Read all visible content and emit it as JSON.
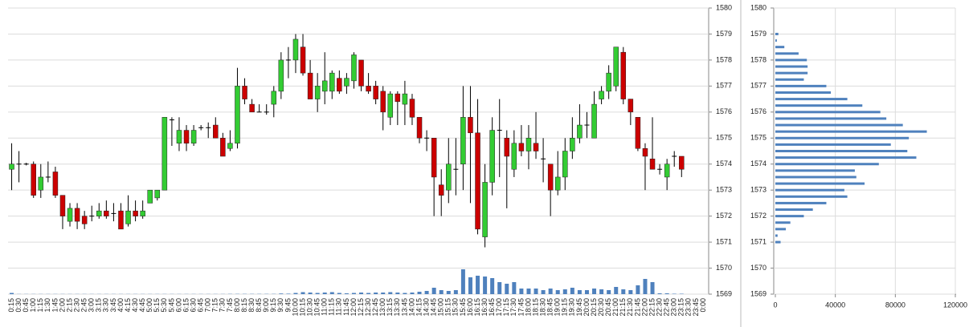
{
  "chart_data": [
    {
      "type": "candlestick",
      "categories": [
        "0:15",
        "0:30",
        "0:45",
        "1:00",
        "1:15",
        "1:30",
        "1:45",
        "2:00",
        "2:15",
        "2:30",
        "2:45",
        "3:00",
        "3:15",
        "3:30",
        "3:45",
        "4:00",
        "4:15",
        "4:30",
        "4:45",
        "5:00",
        "5:15",
        "5:30",
        "5:45",
        "6:00",
        "6:15",
        "6:30",
        "6:45",
        "7:00",
        "7:15",
        "7:30",
        "7:45",
        "8:00",
        "8:15",
        "8:30",
        "8:45",
        "9:00",
        "9:15",
        "9:30",
        "9:45",
        "10:00",
        "10:15",
        "10:30",
        "10:45",
        "11:00",
        "11:15",
        "11:30",
        "11:45",
        "12:00",
        "12:15",
        "12:30",
        "12:45",
        "13:00",
        "13:15",
        "13:30",
        "13:45",
        "14:00",
        "14:15",
        "14:30",
        "14:45",
        "15:00",
        "15:15",
        "15:30",
        "15:45",
        "16:00",
        "16:15",
        "16:30",
        "16:45",
        "17:00",
        "17:15",
        "17:30",
        "17:45",
        "18:00",
        "18:15",
        "18:30",
        "18:45",
        "19:00",
        "19:15",
        "19:30",
        "19:45",
        "20:00",
        "20:15",
        "20:30",
        "20:45",
        "21:00",
        "21:15",
        "21:30",
        "21:45",
        "22:00",
        "22:15",
        "22:30",
        "22:45",
        "23:00",
        "23:15",
        "23:30",
        "23:45",
        "0:00"
      ],
      "open": [
        1573.8,
        1574.0,
        1574.0,
        1574.0,
        1573.0,
        1573.5,
        1573.7,
        1572.8,
        1571.8,
        1572.3,
        1572.0,
        1572.0,
        1572.0,
        1572.2,
        1572.1,
        1572.2,
        1571.7,
        1572.2,
        1572.0,
        1572.5,
        1572.7,
        1573.0,
        1575.7,
        1574.8,
        1575.3,
        1574.8,
        1575.4,
        1575.4,
        1575.5,
        1575.0,
        1574.6,
        1574.8,
        1577.0,
        1576.3,
        1576.0,
        1576.0,
        1576.3,
        1576.8,
        1578.0,
        1578.0,
        1578.5,
        1577.5,
        1576.5,
        1576.8,
        1576.8,
        1577.3,
        1577.0,
        1577.2,
        1578.0,
        1577.0,
        1577.0,
        1576.8,
        1575.8,
        1576.7,
        1576.3,
        1576.5,
        1575.8,
        1575.0,
        1575.0,
        1573.2,
        1573.0,
        1573.8,
        1574.0,
        1575.8,
        1575.2,
        1571.2,
        1573.3,
        1575.3,
        1575.0,
        1573.8,
        1574.8,
        1574.5,
        1574.8,
        1574.2,
        1574.0,
        1573.0,
        1573.5,
        1574.5,
        1575.0,
        1575.5,
        1575.0,
        1576.5,
        1576.8,
        1577.0,
        1578.3,
        1576.5,
        1575.8,
        1574.6,
        1574.2,
        1573.8,
        1573.5,
        1574.3,
        1574.3,
        null,
        null,
        null
      ],
      "high": [
        1574.8,
        1574.5,
        1574.05,
        1574.1,
        1574.0,
        1574.1,
        1573.9,
        1572.8,
        1572.5,
        1572.5,
        1572.2,
        1572.4,
        1572.5,
        1572.6,
        1572.5,
        1572.5,
        1572.8,
        1572.6,
        1572.6,
        1573.0,
        1573.0,
        1575.8,
        1575.8,
        1575.8,
        1575.5,
        1575.5,
        1575.5,
        1575.6,
        1575.8,
        1575.2,
        1575.3,
        1577.7,
        1577.3,
        1576.5,
        1576.3,
        1576.3,
        1577.0,
        1578.3,
        1578.5,
        1579.0,
        1579.0,
        1578.0,
        1577.5,
        1578.3,
        1577.6,
        1577.6,
        1577.5,
        1578.3,
        1578.0,
        1577.5,
        1577.2,
        1577.0,
        1576.8,
        1576.8,
        1577.2,
        1576.7,
        1575.8,
        1575.3,
        1575.0,
        1573.8,
        1575.0,
        1575.0,
        1577.0,
        1577.0,
        1576.5,
        1574.0,
        1575.8,
        1576.5,
        1575.3,
        1575.3,
        1575.5,
        1575.5,
        1576.0,
        1575.0,
        1574.0,
        1574.5,
        1575.0,
        1575.8,
        1576.3,
        1576.0,
        1576.8,
        1577.0,
        1577.8,
        1578.5,
        1578.5,
        1576.5,
        1575.8,
        1574.8,
        1575.8,
        1574.0,
        1574.2,
        1574.5,
        1574.3,
        null,
        null,
        null
      ],
      "low": [
        1573.0,
        1573.3,
        1573.95,
        1572.7,
        1572.7,
        1573.3,
        1572.7,
        1571.5,
        1571.6,
        1571.5,
        1571.5,
        1571.8,
        1571.9,
        1571.9,
        1571.8,
        1571.5,
        1571.6,
        1571.8,
        1571.9,
        1572.5,
        1572.6,
        1573.0,
        1574.7,
        1574.5,
        1574.5,
        1574.7,
        1575.3,
        1575.0,
        1575.0,
        1574.3,
        1574.5,
        1574.6,
        1576.3,
        1576.0,
        1576.0,
        1575.9,
        1575.8,
        1576.5,
        1577.3,
        1577.5,
        1577.4,
        1576.5,
        1576.0,
        1576.3,
        1576.5,
        1576.7,
        1576.7,
        1576.9,
        1576.8,
        1576.7,
        1576.3,
        1575.3,
        1575.5,
        1575.5,
        1575.5,
        1575.5,
        1574.8,
        1574.5,
        1572.0,
        1572.0,
        1572.5,
        1572.8,
        1573.0,
        1572.5,
        1571.3,
        1570.8,
        1572.8,
        1573.5,
        1572.3,
        1573.5,
        1574.3,
        1573.8,
        1574.2,
        1573.3,
        1572.0,
        1572.8,
        1573.0,
        1574.2,
        1574.8,
        1575.0,
        1575.0,
        1576.3,
        1576.5,
        1576.8,
        1576.3,
        1575.5,
        1574.5,
        1573.0,
        1573.8,
        1573.6,
        1573.0,
        1573.9,
        1573.5,
        null,
        null,
        null
      ],
      "close": [
        1574.0,
        1574.0,
        1574.0,
        1572.8,
        1573.5,
        1573.5,
        1572.8,
        1572.0,
        1572.3,
        1571.8,
        1571.7,
        1572.0,
        1572.2,
        1572.0,
        1572.1,
        1571.5,
        1572.2,
        1572.0,
        1572.2,
        1573.0,
        1573.0,
        1575.8,
        1575.7,
        1575.3,
        1574.8,
        1575.3,
        1575.4,
        1575.4,
        1575.0,
        1574.3,
        1574.8,
        1577.0,
        1576.5,
        1576.0,
        1576.0,
        1576.0,
        1576.8,
        1578.0,
        1578.0,
        1578.8,
        1577.5,
        1576.5,
        1577.0,
        1577.2,
        1577.5,
        1576.8,
        1577.3,
        1578.2,
        1577.0,
        1576.8,
        1576.5,
        1576.0,
        1576.7,
        1576.4,
        1576.7,
        1575.8,
        1575.0,
        1575.0,
        1573.5,
        1572.8,
        1574.0,
        1573.8,
        1575.8,
        1575.2,
        1571.5,
        1573.3,
        1575.3,
        1575.3,
        1574.3,
        1574.8,
        1574.5,
        1575.0,
        1574.5,
        1574.2,
        1573.0,
        1573.5,
        1574.5,
        1575.0,
        1575.5,
        1575.5,
        1576.3,
        1576.8,
        1577.5,
        1578.5,
        1576.5,
        1576.0,
        1574.6,
        1574.3,
        1573.8,
        1573.8,
        1574.0,
        1574.3,
        1573.8,
        null,
        null,
        null
      ],
      "volume": [
        1500,
        200,
        200,
        200,
        200,
        200,
        200,
        200,
        200,
        200,
        200,
        200,
        200,
        200,
        200,
        200,
        200,
        200,
        200,
        200,
        200,
        200,
        200,
        200,
        200,
        200,
        200,
        200,
        200,
        200,
        300,
        300,
        300,
        300,
        300,
        300,
        300,
        800,
        600,
        1500,
        2500,
        2000,
        1500,
        2000,
        2500,
        1500,
        1000,
        1500,
        2000,
        1500,
        2000,
        2000,
        2500,
        2000,
        1500,
        2000,
        3000,
        4000,
        8000,
        5000,
        4000,
        5000,
        31000,
        21000,
        23000,
        22000,
        20000,
        15000,
        13000,
        15000,
        7000,
        7000,
        7000,
        5000,
        7000,
        5000,
        6000,
        8000,
        5000,
        5000,
        7000,
        6000,
        5000,
        9000,
        6000,
        5000,
        11000,
        19000,
        15000,
        1000,
        1000,
        500,
        500,
        null,
        null,
        null
      ],
      "volume_lim": [
        0,
        40000
      ],
      "up_color": "#33cc33",
      "down_color": "#cc0000",
      "volume_color": "#4f81bd",
      "ylim": [
        1569,
        1580
      ],
      "yticks": [
        1569,
        1570,
        1571,
        1572,
        1573,
        1574,
        1575,
        1576,
        1577,
        1578,
        1579,
        1580
      ],
      "grid": true
    },
    {
      "type": "barh",
      "y": [
        1579.0,
        1578.75,
        1578.5,
        1578.25,
        1578.0,
        1577.75,
        1577.5,
        1577.25,
        1577.0,
        1576.75,
        1576.5,
        1576.25,
        1576.0,
        1575.75,
        1575.5,
        1575.25,
        1575.0,
        1574.75,
        1574.5,
        1574.25,
        1574.0,
        1573.75,
        1573.5,
        1573.25,
        1573.0,
        1572.75,
        1572.5,
        1572.25,
        1572.0,
        1571.75,
        1571.5,
        1571.25,
        1571.0
      ],
      "values": [
        2000,
        1000,
        6000,
        15500,
        21000,
        21500,
        21500,
        19000,
        34000,
        37000,
        48000,
        58000,
        70000,
        74000,
        85000,
        101000,
        89000,
        77000,
        88000,
        94000,
        69000,
        53000,
        54000,
        59500,
        46000,
        48000,
        34000,
        25000,
        19000,
        10000,
        7000,
        1500,
        3500
      ],
      "color": "#4f81bd",
      "xlim": [
        0,
        120000
      ],
      "xticks": [
        0,
        40000,
        80000,
        120000
      ],
      "ylim": [
        1569,
        1580
      ],
      "yticks": [
        1569,
        1570,
        1571,
        1572,
        1573,
        1574,
        1575,
        1576,
        1577,
        1578,
        1579,
        1580
      ],
      "grid": true
    }
  ]
}
